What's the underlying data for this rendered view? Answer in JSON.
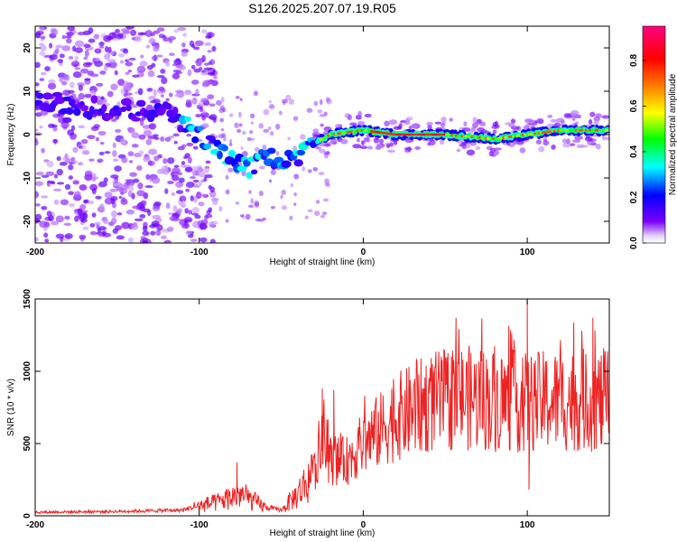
{
  "figure": {
    "title": "S126.2025.207.07.19.R05"
  },
  "chart_data": [
    {
      "type": "heatmap",
      "xlabel": "Height of straight line (km)",
      "ylabel": "Frequency (Hz)",
      "xlim": [
        -200,
        150
      ],
      "ylim": [
        -25,
        25
      ],
      "xticks": [
        -200,
        -100,
        0,
        100
      ],
      "yticks": [
        -20,
        -10,
        0,
        10,
        20
      ],
      "colorbar": {
        "label": "Normalized spectral amplitude",
        "range": [
          0,
          0.95
        ],
        "ticks": [
          0.0,
          0.2,
          0.4,
          0.6,
          0.8
        ]
      },
      "ridge": [
        {
          "x": -200,
          "y": 8
        },
        {
          "x": -180,
          "y": 7
        },
        {
          "x": -160,
          "y": 6
        },
        {
          "x": -140,
          "y": 5.5
        },
        {
          "x": -120,
          "y": 5
        },
        {
          "x": -110,
          "y": 3
        },
        {
          "x": -100,
          "y": 0
        },
        {
          "x": -90,
          "y": -3
        },
        {
          "x": -80,
          "y": -6
        },
        {
          "x": -70,
          "y": -8
        },
        {
          "x": -60,
          "y": -5
        },
        {
          "x": -50,
          "y": -6
        },
        {
          "x": -40,
          "y": -6
        },
        {
          "x": -30,
          "y": -2
        },
        {
          "x": -20,
          "y": 0
        },
        {
          "x": 0,
          "y": 1
        },
        {
          "x": 20,
          "y": 0
        },
        {
          "x": 50,
          "y": 0
        },
        {
          "x": 80,
          "y": -1
        },
        {
          "x": 100,
          "y": 0
        },
        {
          "x": 120,
          "y": 1
        },
        {
          "x": 150,
          "y": 1
        }
      ],
      "colors": {
        "ramp": [
          "#ffffff",
          "#7a00ff",
          "#0000ff",
          "#00ffff",
          "#00ff00",
          "#ffff00",
          "#ff8000",
          "#ff0000",
          "#ff0080"
        ]
      }
    },
    {
      "type": "line",
      "xlabel": "Height of straight line (km)",
      "ylabel": "SNR (10 * v/v)",
      "xlim": [
        -200,
        150
      ],
      "ylim": [
        0,
        1500
      ],
      "xticks": [
        -200,
        -100,
        0,
        100
      ],
      "yticks": [
        0,
        500,
        1000,
        1500
      ],
      "series": [
        {
          "color": "#ee2222",
          "envelope": [
            {
              "x": -200,
              "y": 25
            },
            {
              "x": -150,
              "y": 30
            },
            {
              "x": -110,
              "y": 40
            },
            {
              "x": -100,
              "y": 70
            },
            {
              "x": -90,
              "y": 90
            },
            {
              "x": -75,
              "y": 150
            },
            {
              "x": -60,
              "y": 60
            },
            {
              "x": -50,
              "y": 40
            },
            {
              "x": -40,
              "y": 150
            },
            {
              "x": -30,
              "y": 300
            },
            {
              "x": -25,
              "y": 500
            },
            {
              "x": -20,
              "y": 380
            },
            {
              "x": -10,
              "y": 380
            },
            {
              "x": 0,
              "y": 500
            },
            {
              "x": 20,
              "y": 680
            },
            {
              "x": 40,
              "y": 780
            },
            {
              "x": 60,
              "y": 820
            },
            {
              "x": 80,
              "y": 800
            },
            {
              "x": 100,
              "y": 780
            },
            {
              "x": 120,
              "y": 800
            },
            {
              "x": 150,
              "y": 800
            }
          ],
          "spikes": [
            {
              "x": -77,
              "y": 370
            },
            {
              "x": -25,
              "y": 880
            },
            {
              "x": -18,
              "y": 870
            },
            {
              "x": 100,
              "y": 1500
            },
            {
              "x": 101,
              "y": 180
            },
            {
              "x": 140,
              "y": 1370
            },
            {
              "x": 145,
              "y": 500
            }
          ]
        }
      ]
    }
  ]
}
